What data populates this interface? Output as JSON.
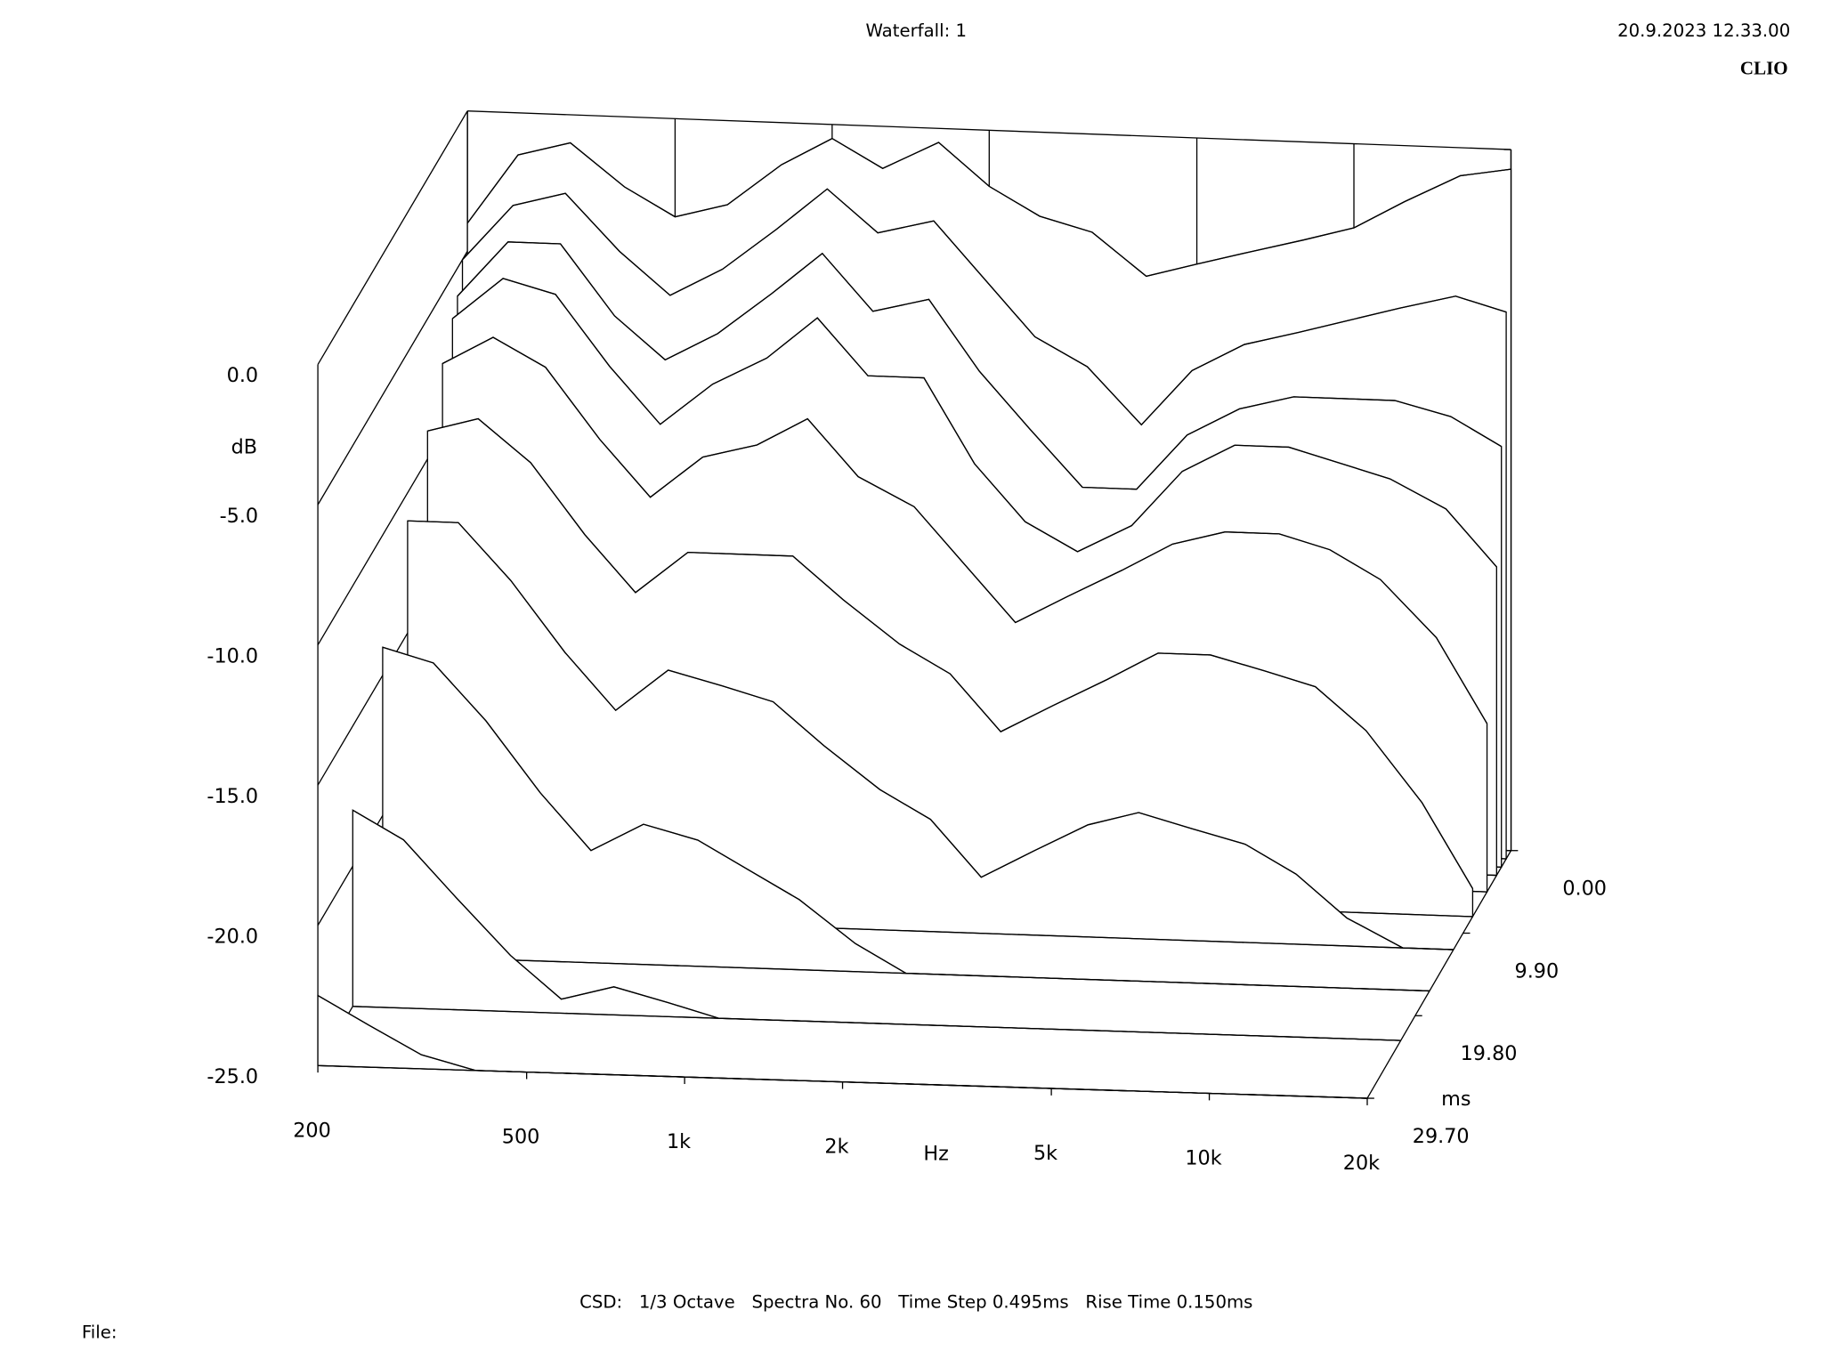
{
  "chart_data": {
    "type": "waterfall",
    "title": "Waterfall: 1",
    "timestamp": "20.9.2023 12.33.00",
    "brand": "CLIO",
    "footer": "CSD:   1/3 Octave   Spectra No. 60   Time Step 0.495ms   Rise Time 0.150ms",
    "file_label": "File:",
    "x_label": "Hz",
    "y_label": "dB",
    "z_label": "ms",
    "log_x": true,
    "color": "#000000",
    "xlim": [
      200,
      20000
    ],
    "xticks": [
      200,
      500,
      {
        "value": 1000,
        "label": "1k"
      },
      {
        "value": 2000,
        "label": "2k"
      },
      {
        "value": 5000,
        "label": "5k"
      },
      {
        "value": 10000,
        "label": "10k"
      },
      {
        "value": 20000,
        "label": "20k"
      }
    ],
    "ylim": [
      -25,
      0
    ],
    "yticks": [
      {
        "value": 0,
        "label": "0.0"
      },
      {
        "value": -5,
        "label": "-5.0"
      },
      {
        "value": -10,
        "label": "-10.0"
      },
      {
        "value": -15,
        "label": "-15.0"
      },
      {
        "value": -20,
        "label": "-20.0"
      },
      {
        "value": -25,
        "label": "-25.0"
      }
    ],
    "zlim": [
      0,
      29.7
    ],
    "zticks": [
      {
        "value": 0,
        "label": "0.00"
      },
      {
        "value": 9.9,
        "label": "9.90"
      },
      {
        "value": 19.8,
        "label": "19.80"
      },
      {
        "value": 29.7,
        "label": "29.70"
      }
    ],
    "x": [
      200,
      250,
      315,
      400,
      500,
      630,
      800,
      1000,
      1250,
      1600,
      2000,
      2500,
      3150,
      4000,
      5000,
      6300,
      8000,
      10000,
      12500,
      16000,
      20000
    ],
    "z": [
      0,
      0.99,
      1.98,
      2.97,
      4.95,
      7.92,
      11.88,
      16.83,
      22.77,
      29.7
    ],
    "values": [
      [
        -4,
        -1.5,
        -1,
        -2.5,
        -3.5,
        -3,
        -1.5,
        -0.5,
        -1.5,
        -0.5,
        -2,
        -3,
        -3.5,
        -5,
        -4.5,
        -4,
        -3.5,
        -3,
        -2,
        -1,
        -0.7
      ],
      [
        -5,
        -3,
        -2.5,
        -4.5,
        -6,
        -5,
        -3.5,
        -2,
        -3.5,
        -3,
        -5,
        -7,
        -8,
        -10,
        -8,
        -7,
        -6.5,
        -6,
        -5.5,
        -5,
        -5.5
      ],
      [
        -6,
        -4,
        -4,
        -6.5,
        -8,
        -7,
        -5.5,
        -4,
        -6,
        -5.5,
        -8,
        -10,
        -12,
        -12,
        -10,
        -9,
        -8.5,
        -8.5,
        -8.5,
        -9,
        -10
      ],
      [
        -6.5,
        -5,
        -5.5,
        -8,
        -10,
        -8.5,
        -7.5,
        -6,
        -8,
        -8,
        -11,
        -13,
        -14,
        -13,
        -11,
        -10,
        -10,
        -10.5,
        -11,
        -12,
        -14
      ],
      [
        -7.5,
        -6.5,
        -7.5,
        -10,
        -12,
        -10.5,
        -10,
        -9,
        -11,
        -12,
        -14,
        -16,
        -15,
        -14,
        -13,
        -12.5,
        -12.5,
        -13,
        -14,
        -16,
        -19
      ],
      [
        -9,
        -8.5,
        -10,
        -12.5,
        -14.5,
        -13,
        -13,
        -13,
        -14.5,
        -16,
        -17,
        -19,
        -18,
        -17,
        -16,
        -16,
        -16.5,
        -17,
        -18.5,
        -21,
        -24
      ],
      [
        -11,
        -11,
        -13,
        -15.5,
        -17.5,
        -16,
        -16.5,
        -17,
        -18.5,
        -20,
        -21,
        -23,
        -22,
        -21,
        -20.5,
        -21,
        -21.5,
        -22.5,
        -24,
        -25,
        -25
      ],
      [
        -14,
        -14.5,
        -16.5,
        -19,
        -21,
        -20,
        -20.5,
        -21.5,
        -22.5,
        -24,
        -25,
        -25,
        -25,
        -25,
        -25,
        -25,
        -25,
        -25,
        -25,
        -25,
        -25
      ],
      [
        -18,
        -19,
        -21,
        -23,
        -24.5,
        -24,
        -24.5,
        -25,
        -25,
        -25,
        -25,
        -25,
        -25,
        -25,
        -25,
        -25,
        -25,
        -25,
        -25,
        -25,
        -25
      ],
      [
        -22.5,
        -23.5,
        -24.5,
        -25,
        -25,
        -25,
        -25,
        -25,
        -25,
        -25,
        -25,
        -25,
        -25,
        -25,
        -25,
        -25,
        -25,
        -25,
        -25,
        -25,
        -25
      ]
    ]
  }
}
